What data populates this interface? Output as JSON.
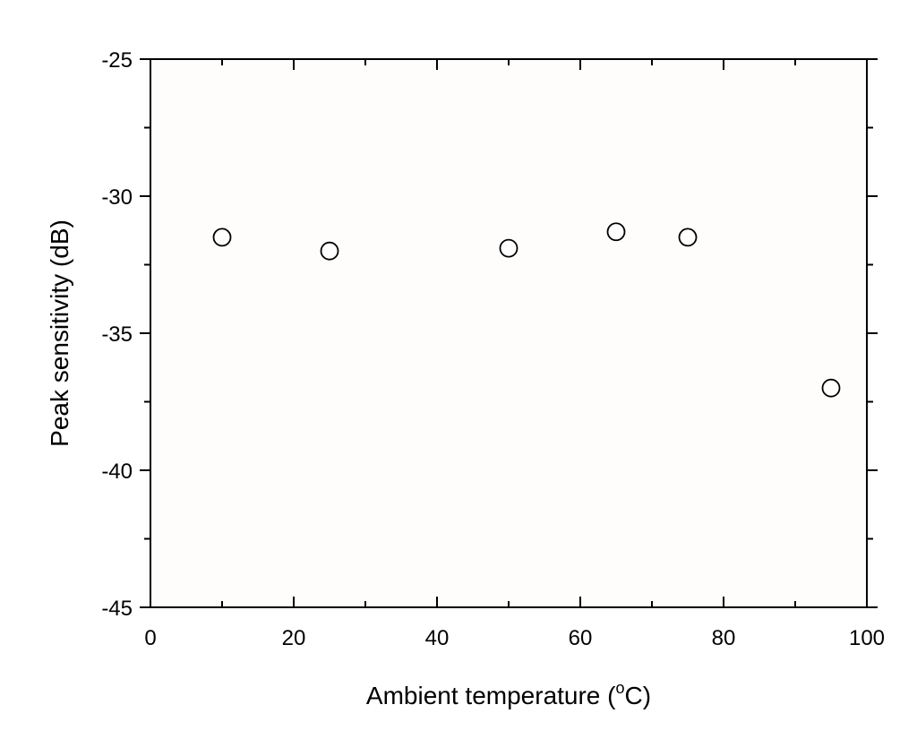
{
  "chart_data": {
    "type": "scatter",
    "title": "",
    "xlabel": "Ambient temperature (",
    "xlabel_sup": "o",
    "xlabel_unit": "C)",
    "ylabel": "Peak sensitivity (dB)",
    "xlim": [
      0,
      100
    ],
    "ylim": [
      -45,
      -25
    ],
    "x_ticks": [
      0,
      20,
      40,
      60,
      80,
      100
    ],
    "x_tick_labels": [
      "0",
      "20",
      "40",
      "60",
      "80",
      "100"
    ],
    "y_ticks": [
      -45,
      -40,
      -35,
      -30,
      -25
    ],
    "y_tick_labels": [
      "-45",
      "-40",
      "-35",
      "-30",
      "-25"
    ],
    "grid": false,
    "legend": "none",
    "marker": "open-circle",
    "series": [
      {
        "x": [
          10,
          25,
          50,
          65,
          75,
          95
        ],
        "y": [
          -31.5,
          -32.0,
          -31.9,
          -31.3,
          -31.5,
          -37.0
        ]
      }
    ],
    "colors": {
      "plot_background": "#fefdfb",
      "axis": "#000000",
      "marker_stroke": "#000000",
      "marker_fill": "#ffffff"
    }
  }
}
